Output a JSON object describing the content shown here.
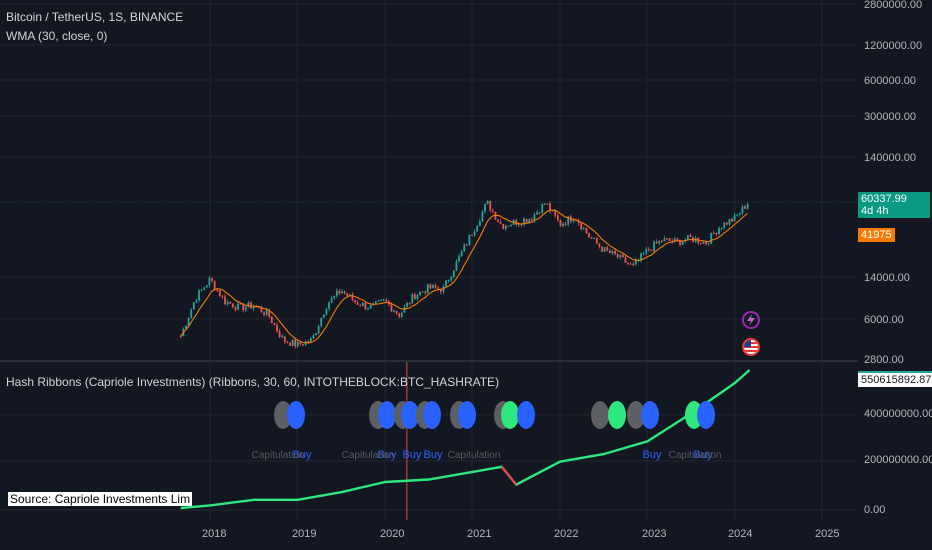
{
  "main": {
    "title": "Bitcoin / TetherUS, 1S, BINANCE",
    "indicator": "WMA (30, close, 0)"
  },
  "sub": {
    "indicator": "Hash Ribbons (Capriole Investments) (Ribbons, 30, 60, INTOTHEBLOCK:BTC_HASHRATE)",
    "source": "Source: Capriole Investments Lim",
    "buy_label": "Buy",
    "capitulation_label": "Capitulation"
  },
  "axes": {
    "price_labels": [
      "2800000.00",
      "1200000.00",
      "600000.00",
      "300000.00",
      "140000.00",
      "14000.00",
      "6000.00",
      "2800.00"
    ],
    "hash_labels": [
      "400000000.00",
      "200000000.00",
      "0.00"
    ],
    "x_labels": [
      "2018",
      "2019",
      "2020",
      "2021",
      "2022",
      "2023",
      "2024",
      "2025"
    ]
  },
  "badges": {
    "last_price": "60337.99",
    "countdown": "4d 4h",
    "wma_value": "41975",
    "hash_value": "550615892.87"
  },
  "colors": {
    "background": "#131722",
    "up": "#26a69a",
    "down": "#ef5350",
    "wma": "#f57c00",
    "ribbon_green": "#2ee87e",
    "ribbon_red": "#e04848",
    "buy_blue": "#2962ff",
    "capitulation_gray": "#5d6062"
  },
  "icons": {
    "lightning": "lightning-icon",
    "flag": "us-flag-icon"
  },
  "chart_data": [
    {
      "type": "candlestick",
      "title": "Bitcoin / TetherUS, 1S, BINANCE",
      "scale": "log",
      "x": [
        "2017-09",
        "2017-11",
        "2018-01",
        "2018-03",
        "2018-05",
        "2018-07",
        "2018-09",
        "2018-11",
        "2019-01",
        "2019-03",
        "2019-05",
        "2019-07",
        "2019-09",
        "2019-11",
        "2020-01",
        "2020-03",
        "2020-05",
        "2020-07",
        "2020-09",
        "2020-11",
        "2021-01",
        "2021-03",
        "2021-05",
        "2021-07",
        "2021-09",
        "2021-11",
        "2022-01",
        "2022-03",
        "2022-05",
        "2022-07",
        "2022-09",
        "2022-11",
        "2023-01",
        "2023-03",
        "2023-05",
        "2023-07",
        "2023-09",
        "2023-11",
        "2024-01",
        "2024-03"
      ],
      "close": [
        4300,
        9000,
        13000,
        8500,
        7500,
        7800,
        6500,
        4000,
        3600,
        4000,
        8000,
        10500,
        8300,
        7500,
        8500,
        6500,
        9500,
        11000,
        10800,
        19000,
        33000,
        58000,
        37000,
        40000,
        43000,
        58000,
        38000,
        45000,
        30000,
        23000,
        20000,
        16500,
        23000,
        28000,
        27000,
        29000,
        26500,
        37000,
        43000,
        60337.99
      ],
      "wma": {
        "name": "WMA (30, close, 0)",
        "value": 41975
      }
    },
    {
      "type": "line",
      "title": "Hash Ribbons (Capriole Investments) (Ribbons, 30, 60, INTOTHEBLOCK:BTC_HASHRATE)",
      "x": [
        "2017-09",
        "2018-01",
        "2018-07",
        "2019-01",
        "2019-07",
        "2020-01",
        "2020-07",
        "2021-01",
        "2021-05",
        "2021-07",
        "2022-01",
        "2022-07",
        "2023-01",
        "2023-07",
        "2024-01",
        "2024-03"
      ],
      "y": [
        8000000,
        18000000,
        40000000,
        40000000,
        70000000,
        110000000,
        120000000,
        150000000,
        170000000,
        100000000,
        190000000,
        220000000,
        270000000,
        380000000,
        500000000,
        550615892.87
      ]
    }
  ]
}
